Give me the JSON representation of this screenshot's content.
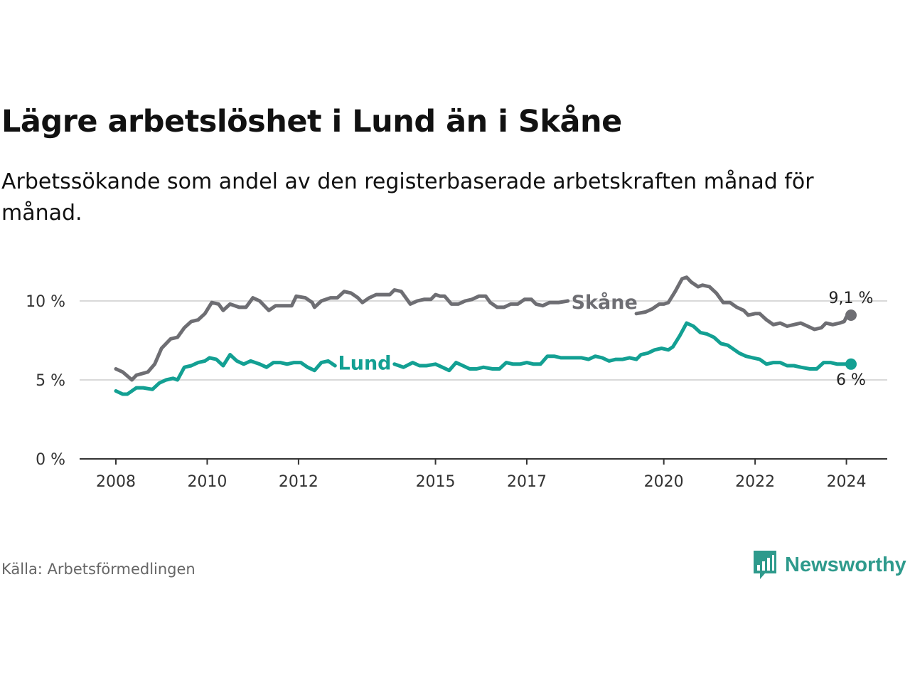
{
  "title": "Lägre arbetslöshet i Lund än i Skåne",
  "subtitle": "Arbetssökande som andel av den registerbaserade arbetskraften månad för månad.",
  "source": "Källa: Arbetsförmedlingen",
  "brand": {
    "name": "Newsworthy",
    "icon": "newsworthy-logo-icon",
    "color": "#2e9a8c"
  },
  "chart_data": {
    "type": "line",
    "title": "Lägre arbetslöshet i Lund än i Skåne",
    "xlabel": "",
    "ylabel": "",
    "x_range": [
      2008.0,
      2024.1
    ],
    "ylim": [
      0,
      12
    ],
    "y_ticks": [
      0,
      5,
      10
    ],
    "y_tick_labels": [
      "0 %",
      "5 %",
      "10 %"
    ],
    "x_ticks": [
      2008,
      2010,
      2012,
      2015,
      2017,
      2020,
      2022,
      2024
    ],
    "x_tick_labels": [
      "2008",
      "2010",
      "2012",
      "2015",
      "2017",
      "2020",
      "2022",
      "2024"
    ],
    "grid": true,
    "series": [
      {
        "name": "Skåne",
        "color": "#6e6e73",
        "end_label": "9,1 %",
        "points": [
          [
            2008.0,
            5.7
          ],
          [
            2008.15,
            5.5
          ],
          [
            2008.35,
            5.0
          ],
          [
            2008.45,
            5.3
          ],
          [
            2008.7,
            5.5
          ],
          [
            2008.85,
            6.0
          ],
          [
            2009.0,
            7.0
          ],
          [
            2009.2,
            7.6
          ],
          [
            2009.35,
            7.7
          ],
          [
            2009.5,
            8.3
          ],
          [
            2009.65,
            8.7
          ],
          [
            2009.8,
            8.8
          ],
          [
            2009.95,
            9.2
          ],
          [
            2010.1,
            9.9
          ],
          [
            2010.25,
            9.8
          ],
          [
            2010.35,
            9.4
          ],
          [
            2010.5,
            9.8
          ],
          [
            2010.7,
            9.6
          ],
          [
            2010.85,
            9.6
          ],
          [
            2011.0,
            10.2
          ],
          [
            2011.15,
            10.0
          ],
          [
            2011.35,
            9.4
          ],
          [
            2011.5,
            9.7
          ],
          [
            2011.7,
            9.7
          ],
          [
            2011.85,
            9.7
          ],
          [
            2011.95,
            10.3
          ],
          [
            2012.15,
            10.2
          ],
          [
            2012.3,
            9.9
          ],
          [
            2012.35,
            9.6
          ],
          [
            2012.5,
            10.0
          ],
          [
            2012.7,
            10.2
          ],
          [
            2012.85,
            10.2
          ],
          [
            2013.0,
            10.6
          ],
          [
            2013.15,
            10.5
          ],
          [
            2013.3,
            10.2
          ],
          [
            2013.4,
            9.9
          ],
          [
            2013.55,
            10.2
          ],
          [
            2013.7,
            10.4
          ],
          [
            2013.85,
            10.4
          ],
          [
            2014.0,
            10.4
          ],
          [
            2014.1,
            10.7
          ],
          [
            2014.25,
            10.6
          ],
          [
            2014.35,
            10.2
          ],
          [
            2014.45,
            9.8
          ],
          [
            2014.6,
            10.0
          ],
          [
            2014.75,
            10.1
          ],
          [
            2014.9,
            10.1
          ],
          [
            2015.0,
            10.4
          ],
          [
            2015.1,
            10.3
          ],
          [
            2015.2,
            10.3
          ],
          [
            2015.35,
            9.8
          ],
          [
            2015.5,
            9.8
          ],
          [
            2015.65,
            10.0
          ],
          [
            2015.8,
            10.1
          ],
          [
            2015.95,
            10.3
          ],
          [
            2016.1,
            10.3
          ],
          [
            2016.2,
            9.9
          ],
          [
            2016.35,
            9.6
          ],
          [
            2016.5,
            9.6
          ],
          [
            2016.65,
            9.8
          ],
          [
            2016.8,
            9.8
          ],
          [
            2016.95,
            10.1
          ],
          [
            2017.1,
            10.1
          ],
          [
            2017.2,
            9.8
          ],
          [
            2017.35,
            9.7
          ],
          [
            2017.5,
            9.9
          ],
          [
            2017.7,
            9.9
          ],
          [
            2017.9,
            10.0
          ],
          [
            2019.4,
            9.2
          ],
          [
            2019.6,
            9.3
          ],
          [
            2019.75,
            9.5
          ],
          [
            2019.9,
            9.8
          ],
          [
            2020.0,
            9.8
          ],
          [
            2020.1,
            9.9
          ],
          [
            2020.25,
            10.6
          ],
          [
            2020.4,
            11.4
          ],
          [
            2020.5,
            11.5
          ],
          [
            2020.6,
            11.2
          ],
          [
            2020.75,
            10.9
          ],
          [
            2020.85,
            11.0
          ],
          [
            2021.0,
            10.9
          ],
          [
            2021.15,
            10.5
          ],
          [
            2021.3,
            9.9
          ],
          [
            2021.45,
            9.9
          ],
          [
            2021.6,
            9.6
          ],
          [
            2021.75,
            9.4
          ],
          [
            2021.85,
            9.1
          ],
          [
            2022.0,
            9.2
          ],
          [
            2022.1,
            9.2
          ],
          [
            2022.25,
            8.8
          ],
          [
            2022.4,
            8.5
          ],
          [
            2022.55,
            8.6
          ],
          [
            2022.7,
            8.4
          ],
          [
            2022.85,
            8.5
          ],
          [
            2023.0,
            8.6
          ],
          [
            2023.15,
            8.4
          ],
          [
            2023.3,
            8.2
          ],
          [
            2023.45,
            8.3
          ],
          [
            2023.55,
            8.6
          ],
          [
            2023.7,
            8.5
          ],
          [
            2023.85,
            8.6
          ],
          [
            2023.95,
            8.7
          ],
          [
            2024.0,
            9.0
          ],
          [
            2024.1,
            9.1
          ]
        ]
      },
      {
        "name": "Lund",
        "color": "#13a093",
        "end_label": "6 %",
        "points": [
          [
            2008.0,
            4.3
          ],
          [
            2008.15,
            4.1
          ],
          [
            2008.25,
            4.1
          ],
          [
            2008.45,
            4.5
          ],
          [
            2008.6,
            4.5
          ],
          [
            2008.8,
            4.4
          ],
          [
            2008.95,
            4.8
          ],
          [
            2009.1,
            5.0
          ],
          [
            2009.25,
            5.1
          ],
          [
            2009.35,
            5.0
          ],
          [
            2009.5,
            5.8
          ],
          [
            2009.65,
            5.9
          ],
          [
            2009.8,
            6.1
          ],
          [
            2009.95,
            6.2
          ],
          [
            2010.05,
            6.4
          ],
          [
            2010.2,
            6.3
          ],
          [
            2010.35,
            5.9
          ],
          [
            2010.5,
            6.6
          ],
          [
            2010.65,
            6.2
          ],
          [
            2010.8,
            6.0
          ],
          [
            2010.95,
            6.2
          ],
          [
            2011.15,
            6.0
          ],
          [
            2011.3,
            5.8
          ],
          [
            2011.45,
            6.1
          ],
          [
            2011.6,
            6.1
          ],
          [
            2011.75,
            6.0
          ],
          [
            2011.9,
            6.1
          ],
          [
            2012.05,
            6.1
          ],
          [
            2012.2,
            5.8
          ],
          [
            2012.35,
            5.6
          ],
          [
            2012.5,
            6.1
          ],
          [
            2012.65,
            6.2
          ],
          [
            2012.8,
            5.9
          ],
          [
            2014.1,
            6.0
          ],
          [
            2014.3,
            5.8
          ],
          [
            2014.5,
            6.1
          ],
          [
            2014.65,
            5.9
          ],
          [
            2014.8,
            5.9
          ],
          [
            2015.0,
            6.0
          ],
          [
            2015.15,
            5.8
          ],
          [
            2015.3,
            5.6
          ],
          [
            2015.45,
            6.1
          ],
          [
            2015.6,
            5.9
          ],
          [
            2015.75,
            5.7
          ],
          [
            2015.9,
            5.7
          ],
          [
            2016.05,
            5.8
          ],
          [
            2016.25,
            5.7
          ],
          [
            2016.4,
            5.7
          ],
          [
            2016.55,
            6.1
          ],
          [
            2016.7,
            6.0
          ],
          [
            2016.85,
            6.0
          ],
          [
            2017.0,
            6.1
          ],
          [
            2017.15,
            6.0
          ],
          [
            2017.3,
            6.0
          ],
          [
            2017.45,
            6.5
          ],
          [
            2017.6,
            6.5
          ],
          [
            2017.75,
            6.4
          ],
          [
            2017.9,
            6.4
          ],
          [
            2018.2,
            6.4
          ],
          [
            2018.35,
            6.3
          ],
          [
            2018.5,
            6.5
          ],
          [
            2018.65,
            6.4
          ],
          [
            2018.8,
            6.2
          ],
          [
            2018.95,
            6.3
          ],
          [
            2019.1,
            6.3
          ],
          [
            2019.25,
            6.4
          ],
          [
            2019.4,
            6.3
          ],
          [
            2019.5,
            6.6
          ],
          [
            2019.65,
            6.7
          ],
          [
            2019.8,
            6.9
          ],
          [
            2019.95,
            7.0
          ],
          [
            2020.1,
            6.9
          ],
          [
            2020.2,
            7.1
          ],
          [
            2020.35,
            7.8
          ],
          [
            2020.5,
            8.6
          ],
          [
            2020.65,
            8.4
          ],
          [
            2020.8,
            8.0
          ],
          [
            2020.95,
            7.9
          ],
          [
            2021.1,
            7.7
          ],
          [
            2021.25,
            7.3
          ],
          [
            2021.4,
            7.2
          ],
          [
            2021.5,
            7.0
          ],
          [
            2021.65,
            6.7
          ],
          [
            2021.8,
            6.5
          ],
          [
            2021.95,
            6.4
          ],
          [
            2022.1,
            6.3
          ],
          [
            2022.25,
            6.0
          ],
          [
            2022.4,
            6.1
          ],
          [
            2022.55,
            6.1
          ],
          [
            2022.7,
            5.9
          ],
          [
            2022.85,
            5.9
          ],
          [
            2023.0,
            5.8
          ],
          [
            2023.2,
            5.7
          ],
          [
            2023.35,
            5.7
          ],
          [
            2023.5,
            6.1
          ],
          [
            2023.65,
            6.1
          ],
          [
            2023.8,
            6.0
          ],
          [
            2023.95,
            6.0
          ],
          [
            2024.1,
            6.0
          ]
        ]
      }
    ]
  }
}
